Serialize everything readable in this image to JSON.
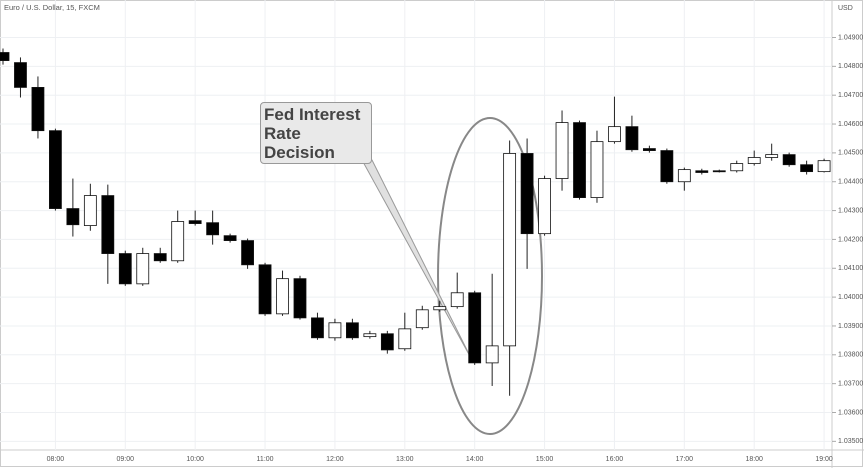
{
  "chart_data": {
    "type": "candlestick",
    "title": "Euro / U.S. Dollar, 15, FXCM",
    "y_axis_label": "USD",
    "annotation": "Fed Interest Rate Decision",
    "categories": [
      null,
      null,
      null,
      "08:00",
      null,
      null,
      null,
      "09:00",
      null,
      null,
      null,
      "10:00",
      null,
      null,
      null,
      "11:00",
      null,
      null,
      null,
      "12:00",
      null,
      null,
      null,
      "13:00",
      null,
      null,
      null,
      "14:00",
      null,
      null,
      null,
      "15:00",
      null,
      null,
      null,
      "16:00",
      null,
      null,
      null,
      "17:00",
      null,
      null,
      null,
      "18:00",
      null,
      null,
      null,
      "19:00"
    ],
    "open": [
      1.04848,
      1.04813,
      1.04727,
      1.04577,
      1.04307,
      1.04248,
      1.04352,
      1.04151,
      1.04046,
      1.04151,
      1.04126,
      1.04265,
      1.04258,
      1.04213,
      1.04196,
      1.04112,
      1.03942,
      1.04064,
      1.03928,
      1.03859,
      1.03911,
      1.03863,
      1.03873,
      1.03821,
      1.03894,
      1.03956,
      1.03967,
      1.04015,
      1.03772,
      1.03831,
      1.04498,
      1.0422,
      1.04411,
      1.04605,
      1.04345,
      1.04539,
      1.04591,
      1.04515,
      1.04508,
      1.044,
      1.04438,
      1.04438,
      1.04438,
      1.04463,
      1.04484,
      1.04494,
      1.04459,
      1.04435
    ],
    "high": [
      1.04862,
      1.04831,
      1.04765,
      1.04584,
      1.04411,
      1.04393,
      1.0439,
      1.04161,
      1.04171,
      1.04171,
      1.043,
      1.043,
      1.043,
      1.0422,
      1.04203,
      1.04119,
      1.04092,
      1.04074,
      1.03946,
      1.03925,
      1.03925,
      1.03883,
      1.03883,
      1.03946,
      1.0397,
      1.03987,
      1.04085,
      1.04022,
      1.04081,
      1.04543,
      1.0455,
      1.04421,
      1.04647,
      1.04612,
      1.04577,
      1.04695,
      1.04629,
      1.04525,
      1.04515,
      1.04449,
      1.04445,
      1.04442,
      1.04473,
      1.04508,
      1.04532,
      1.04501,
      1.04473,
      1.0448
    ],
    "low": [
      1.04806,
      1.04692,
      1.0455,
      1.043,
      1.0421,
      1.0423,
      1.04046,
      1.04039,
      1.04039,
      1.04119,
      1.04119,
      1.04248,
      1.04182,
      1.04189,
      1.04098,
      1.03935,
      1.03935,
      1.03922,
      1.03852,
      1.03849,
      1.03852,
      1.03856,
      1.03804,
      1.03814,
      1.03887,
      1.03949,
      1.0396,
      1.03765,
      1.03692,
      1.03658,
      1.04098,
      1.04213,
      1.04369,
      1.04338,
      1.04327,
      1.04532,
      1.04504,
      1.04501,
      1.04393,
      1.04369,
      1.04425,
      1.04432,
      1.04432,
      1.04456,
      1.04473,
      1.04452,
      1.04425,
      1.04432
    ],
    "close": [
      1.0482,
      1.04727,
      1.04577,
      1.04307,
      1.04251,
      1.04352,
      1.04151,
      1.04046,
      1.04151,
      1.04126,
      1.04262,
      1.04255,
      1.04216,
      1.04196,
      1.04112,
      1.03942,
      1.04064,
      1.03928,
      1.03859,
      1.03911,
      1.03859,
      1.03873,
      1.03817,
      1.0389,
      1.03956,
      1.03967,
      1.04015,
      1.03772,
      1.03831,
      1.04498,
      1.0422,
      1.04411,
      1.04605,
      1.04345,
      1.04539,
      1.04591,
      1.04511,
      1.04508,
      1.044,
      1.04442,
      1.04432,
      1.04435,
      1.04463,
      1.04484,
      1.04494,
      1.04459,
      1.04435,
      1.04473
    ],
    "up_color": "#ffffff",
    "down_color": "#000000",
    "wick_color": "#222222",
    "ylim": [
      1.0347,
      1.0503
    ],
    "yticks": [
      {
        "value": 1.035,
        "label": "1.03500"
      },
      {
        "value": 1.036,
        "label": "1.03600"
      },
      {
        "value": 1.037,
        "label": "1.03700"
      },
      {
        "value": 1.038,
        "label": "1.03800"
      },
      {
        "value": 1.039,
        "label": "1.03900"
      },
      {
        "value": 1.04,
        "label": "1.04000"
      },
      {
        "value": 1.041,
        "label": "1.04100"
      },
      {
        "value": 1.042,
        "label": "1.04200"
      },
      {
        "value": 1.043,
        "label": "1.04300"
      },
      {
        "value": 1.044,
        "label": "1.04400"
      },
      {
        "value": 1.045,
        "label": "1.04500"
      },
      {
        "value": 1.046,
        "label": "1.04600"
      },
      {
        "value": 1.047,
        "label": "1.04700"
      },
      {
        "value": 1.048,
        "label": "1.04800"
      },
      {
        "value": 1.049,
        "label": "1.04900"
      }
    ],
    "grid": true
  }
}
